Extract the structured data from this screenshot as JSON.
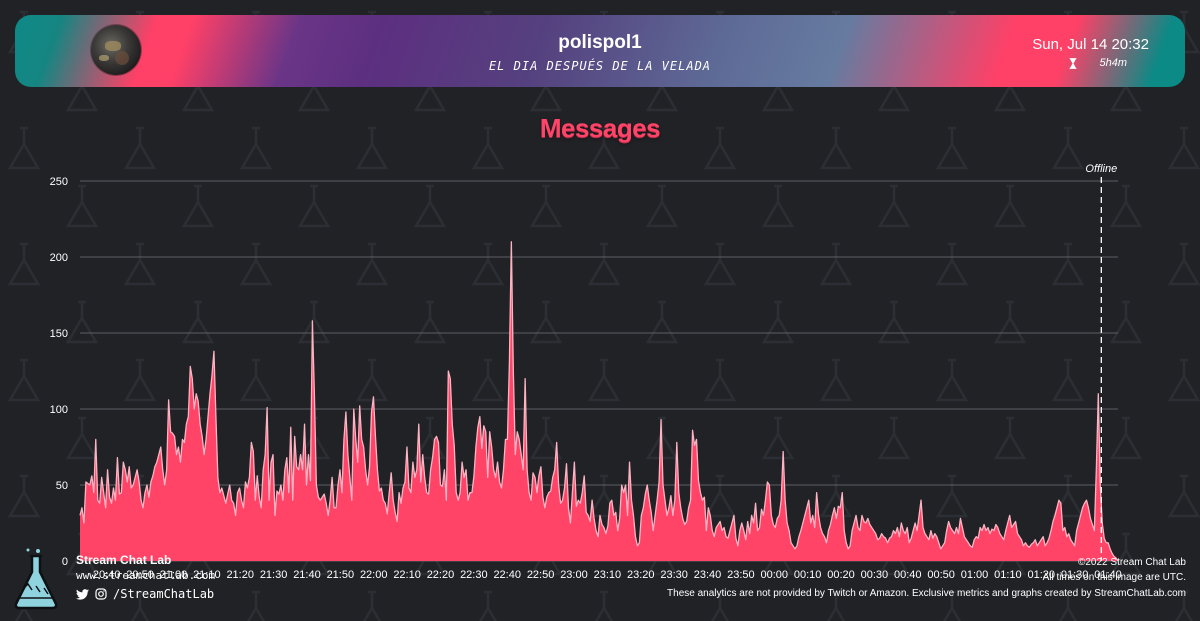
{
  "header": {
    "channel_name": "polispol1",
    "stream_title": "EL DIA DESPUÉS DE LA VELADA",
    "date": "Sun, Jul 14 20:32",
    "duration": "5h4m",
    "duration_icon": "hourglass-icon",
    "avatar_icon": "channel-avatar"
  },
  "colors": {
    "background": "#202226",
    "accent": "#ff4067",
    "area_fill": "#ff4468",
    "line": "#ffb3c2",
    "teal": "#0e8a87",
    "purple": "#5d2f80"
  },
  "chart_data": {
    "type": "area",
    "title": "Messages",
    "xlabel": "",
    "ylabel": "",
    "ylim": [
      0,
      250
    ],
    "yticks": [
      0,
      50,
      100,
      150,
      200,
      250
    ],
    "grid": true,
    "x_start": "20:32",
    "x_end": "01:43",
    "xticks": [
      "20:40",
      "20:50",
      "21:00",
      "21:10",
      "21:20",
      "21:30",
      "21:40",
      "21:50",
      "22:00",
      "22:10",
      "22:20",
      "22:30",
      "22:40",
      "22:50",
      "23:00",
      "23:10",
      "23:20",
      "23:30",
      "23:40",
      "23:50",
      "00:00",
      "00:10",
      "00:20",
      "00:30",
      "00:40",
      "00:50",
      "01:00",
      "01:10",
      "01:20",
      "01:30",
      "01:40"
    ],
    "annotation": {
      "label": "Offline",
      "time": "01:38"
    },
    "series": [
      {
        "values": [
          30,
          35,
          25,
          52,
          51,
          50,
          56,
          45,
          80,
          40,
          38,
          55,
          45,
          35,
          60,
          42,
          38,
          48,
          40,
          68,
          44,
          45,
          65,
          60,
          52,
          62,
          48,
          50,
          55,
          60,
          52,
          40,
          35,
          45,
          50,
          42,
          52,
          56,
          62,
          65,
          70,
          75,
          60,
          50,
          60,
          106,
          85,
          84,
          82,
          70,
          75,
          65,
          80,
          78,
          90,
          95,
          128,
          120,
          100,
          110,
          105,
          90,
          82,
          70,
          80,
          95,
          110,
          122,
          138,
          95,
          55,
          45,
          48,
          43,
          38,
          44,
          50,
          40,
          38,
          30,
          45,
          48,
          40,
          35,
          52,
          48,
          55,
          78,
          72,
          40,
          56,
          42,
          35,
          60,
          70,
          101,
          40,
          65,
          70,
          30,
          46,
          44,
          50,
          40,
          60,
          68,
          45,
          88,
          40,
          82,
          62,
          60,
          70,
          60,
          90,
          50,
          70,
          53,
          158,
          110,
          50,
          42,
          40,
          42,
          44,
          38,
          30,
          40,
          55,
          35,
          35,
          50,
          60,
          45,
          80,
          98,
          70,
          55,
          40,
          100,
          80,
          65,
          102,
          80,
          75,
          60,
          50,
          62,
          98,
          108,
          82,
          60,
          46,
          48,
          40,
          38,
          31,
          45,
          58,
          40,
          32,
          26,
          45,
          38,
          48,
          52,
          75,
          48,
          45,
          65,
          55,
          60,
          90,
          52,
          70,
          55,
          45,
          44,
          60,
          68,
          80,
          82,
          78,
          50,
          49,
          60,
          40,
          125,
          120,
          90,
          76,
          45,
          40,
          45,
          65,
          55,
          60,
          40,
          45,
          45,
          56,
          75,
          88,
          95,
          74,
          89,
          85,
          55,
          85,
          75,
          60,
          55,
          65,
          52,
          48,
          60,
          80,
          80,
          130,
          210,
          125,
          70,
          85,
          80,
          70,
          60,
          120,
          60,
          45,
          40,
          58,
          55,
          45,
          56,
          62,
          42,
          35,
          42,
          45,
          46,
          55,
          60,
          78,
          50,
          38,
          40,
          48,
          64,
          35,
          25,
          45,
          65,
          36,
          40,
          38,
          45,
          56,
          32,
          30,
          26,
          40,
          28,
          20,
          16,
          30,
          24,
          22,
          18,
          23,
          38,
          40,
          30,
          32,
          20,
          28,
          50,
          45,
          50,
          30,
          65,
          40,
          30,
          16,
          10,
          12,
          30,
          35,
          44,
          50,
          40,
          32,
          20,
          30,
          40,
          52,
          93,
          50,
          40,
          30,
          35,
          43,
          30,
          40,
          78,
          45,
          35,
          28,
          24,
          26,
          35,
          40,
          86,
          76,
          80,
          53,
          45,
          40,
          42,
          20,
          35,
          30,
          20,
          16,
          22,
          24,
          26,
          20,
          22,
          16,
          15,
          20,
          25,
          30,
          15,
          10,
          20,
          25,
          20,
          14,
          26,
          18,
          30,
          25,
          38,
          20,
          22,
          34,
          30,
          40,
          52,
          50,
          30,
          24,
          22,
          28,
          30,
          40,
          72,
          40,
          25,
          20,
          12,
          10,
          8,
          10,
          16,
          20,
          25,
          30,
          35,
          40,
          25,
          30,
          22,
          45,
          30,
          22,
          18,
          16,
          12,
          20,
          24,
          30,
          35,
          28,
          36,
          35,
          45,
          20,
          12,
          8,
          10,
          20,
          25,
          30,
          22,
          20,
          30,
          26,
          25,
          28,
          24,
          22,
          20,
          18,
          14,
          15,
          18,
          16,
          15,
          12,
          15,
          16,
          20,
          18,
          22,
          16,
          25,
          20,
          18,
          22,
          12,
          15,
          20,
          25,
          20,
          30,
          40,
          22,
          18,
          16,
          14,
          20,
          15,
          18,
          16,
          12,
          8,
          10,
          12,
          20,
          26,
          22,
          20,
          18,
          22,
          18,
          28,
          22,
          16,
          14,
          12,
          10,
          9,
          14,
          16,
          15,
          22,
          20,
          24,
          20,
          22,
          18,
          21,
          20,
          24,
          22,
          18,
          16,
          14,
          20,
          25,
          30,
          22,
          24,
          26,
          18,
          16,
          14,
          10,
          12,
          10,
          9,
          11,
          12,
          14,
          10,
          12,
          14,
          16,
          10,
          12,
          15,
          20,
          26,
          30,
          35,
          40,
          38,
          20,
          22,
          16,
          18,
          14,
          12,
          10,
          20,
          25,
          30,
          35,
          38,
          40,
          35,
          28,
          24,
          20,
          60,
          110,
          50,
          25,
          15,
          12,
          12,
          8,
          5,
          3,
          2,
          0
        ]
      }
    ]
  },
  "footer": {
    "brand_name": "Stream Chat Lab",
    "brand_url": "www.streamchatlab.com",
    "social_handle": "/StreamChatLab",
    "social_icons": [
      "twitter-icon",
      "instagram-icon"
    ],
    "copyright": "©2022 Stream Chat Lab",
    "timezone_note": "All times on this image are UTC.",
    "disclaimer": "These analytics are not provided by Twitch or Amazon. Exclusive metrics and graphs created by StreamChatLab.com"
  }
}
